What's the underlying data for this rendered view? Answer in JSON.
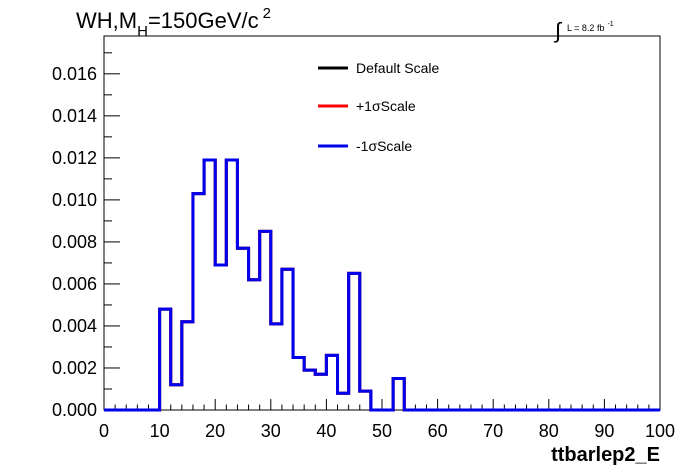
{
  "chart_data": {
    "type": "line",
    "title": {
      "main": "WH,M",
      "sub": "H",
      "rest": "=150GeV/c",
      "sup": "2"
    },
    "lumi": {
      "symbol": "∫",
      "text": "L = 8.2 fb",
      "sup": "-1"
    },
    "xlabel": "ttbarlep2_E",
    "ylabel": "",
    "xlim": [
      0,
      100
    ],
    "ylim": [
      0,
      0.0178
    ],
    "x_ticks": [
      "0",
      "10",
      "20",
      "30",
      "40",
      "50",
      "60",
      "70",
      "80",
      "90",
      "100"
    ],
    "y_ticks": [
      "0.000",
      "0.002",
      "0.004",
      "0.006",
      "0.008",
      "0.010",
      "0.012",
      "0.014",
      "0.016"
    ],
    "bin_width": 2,
    "bin_edges_start": 0,
    "legend_position": "top-center",
    "series": [
      {
        "name": "Default Scale",
        "color": "#000000",
        "values": [
          0,
          0,
          0,
          0,
          0,
          0.0048,
          0.0012,
          0.0042,
          0.0103,
          0.0119,
          0.0069,
          0.0119,
          0.0077,
          0.0062,
          0.0085,
          0.0041,
          0.0067,
          0.0025,
          0.0019,
          0.0017,
          0.0026,
          0.0008,
          0.0065,
          0.0009,
          0,
          0,
          0.0015,
          0,
          0,
          0,
          0,
          0,
          0,
          0,
          0,
          0,
          0,
          0,
          0,
          0,
          0,
          0,
          0,
          0,
          0,
          0,
          0,
          0,
          0,
          0
        ]
      },
      {
        "name": "+1σScale",
        "color": "#ff0000",
        "values": [
          0,
          0,
          0,
          0,
          0,
          0.0048,
          0.0012,
          0.0042,
          0.0103,
          0.0119,
          0.0069,
          0.0119,
          0.0077,
          0.0062,
          0.0085,
          0.0041,
          0.0067,
          0.0025,
          0.0019,
          0.0017,
          0.0026,
          0.0008,
          0.0065,
          0.0009,
          0,
          0,
          0.0015,
          0,
          0,
          0,
          0,
          0,
          0,
          0,
          0,
          0,
          0,
          0,
          0,
          0,
          0,
          0,
          0,
          0,
          0,
          0,
          0,
          0,
          0,
          0
        ]
      },
      {
        "name": "-1σScale",
        "color": "#0000ee",
        "values": [
          0,
          0,
          0,
          0,
          0,
          0.0048,
          0.0012,
          0.0042,
          0.0103,
          0.0119,
          0.0069,
          0.0119,
          0.0077,
          0.0062,
          0.0085,
          0.0041,
          0.0067,
          0.0025,
          0.0019,
          0.0017,
          0.0026,
          0.0008,
          0.0065,
          0.0009,
          0,
          0,
          0.0015,
          0,
          0,
          0,
          0,
          0,
          0,
          0,
          0,
          0,
          0,
          0,
          0,
          0,
          0,
          0,
          0,
          0,
          0,
          0,
          0,
          0,
          0,
          0
        ]
      }
    ]
  }
}
